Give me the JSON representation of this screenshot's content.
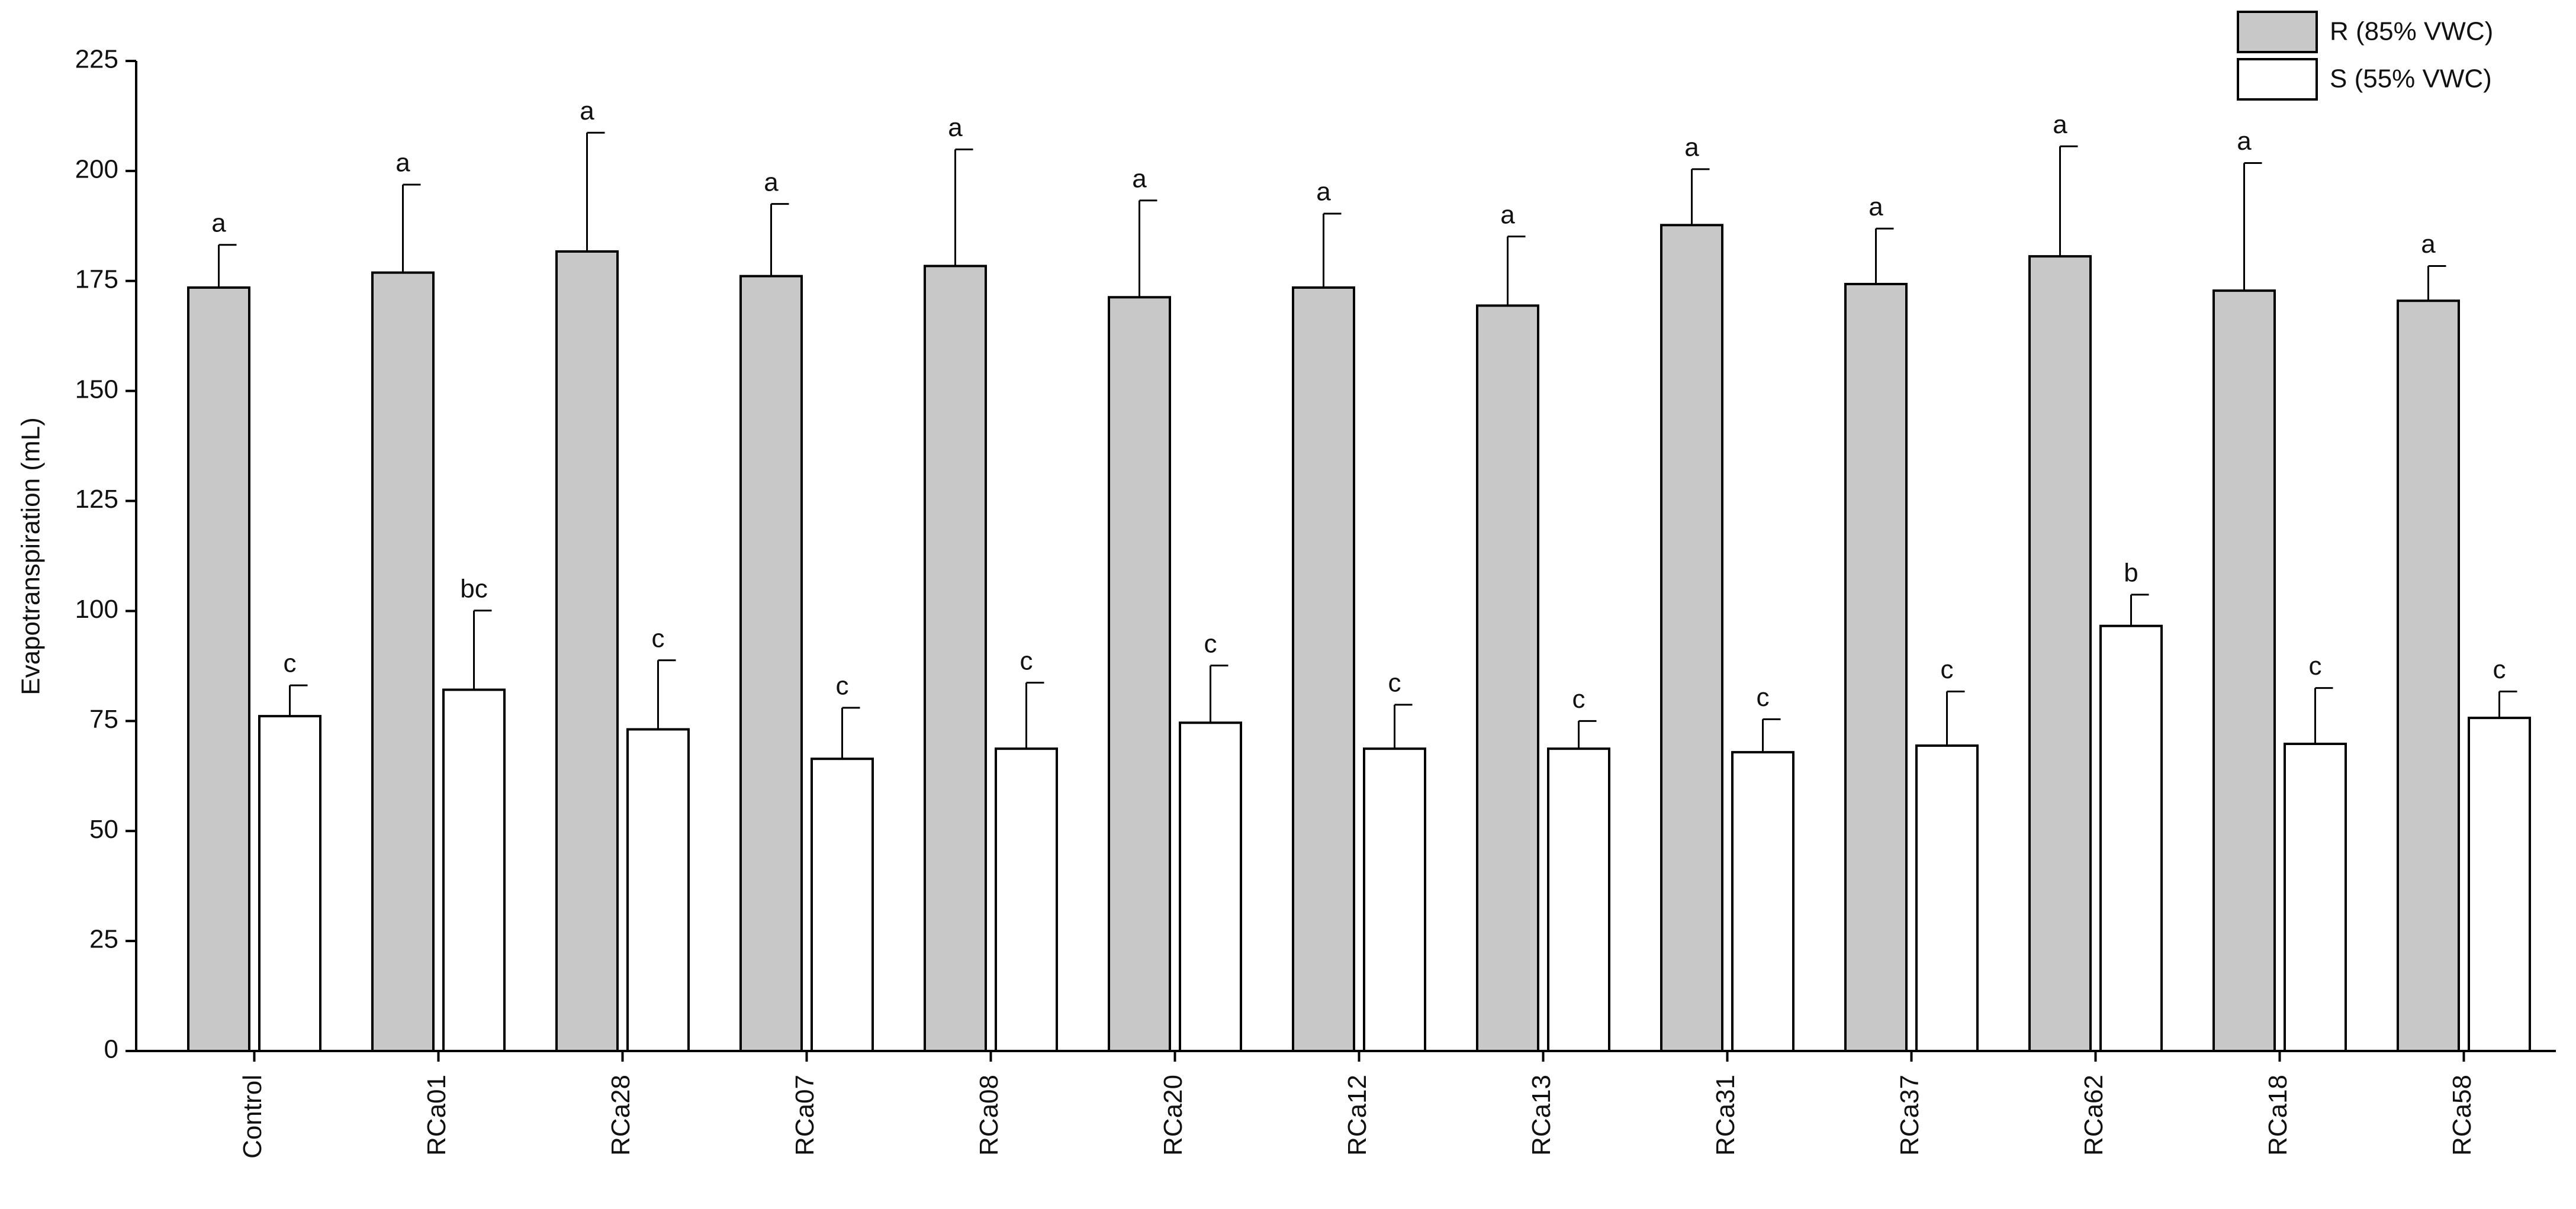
{
  "chart_data": {
    "type": "bar",
    "y_label": "Evapotranspiration (mL)",
    "categories": [
      "Control",
      "RCa01",
      "RCa28",
      "RCa07",
      "RCa08",
      "RCa20",
      "RCa12",
      "RCa13",
      "RCa31",
      "RCa37",
      "RCa62",
      "RCa18",
      "RCa58"
    ],
    "series": [
      {
        "name": "R (85% VWC)",
        "color": "#c8c8c8",
        "values": [
          173.5,
          176.9,
          181.7,
          176.1,
          178.4,
          171.3,
          173.5,
          169.4,
          187.7,
          174.3,
          180.6,
          172.8,
          170.5
        ],
        "errors": [
          9.7,
          20,
          27,
          16.4,
          26.5,
          22,
          16.8,
          15.7,
          12.7,
          12.6,
          25,
          29,
          7.9
        ],
        "letters": [
          "a",
          "a",
          "a",
          "a",
          "a",
          "a",
          "a",
          "a",
          "a",
          "a",
          "a",
          "a",
          "a"
        ]
      },
      {
        "name": "S (55% VWC)",
        "color": "#ffffff",
        "values": [
          76.1,
          82.1,
          73.1,
          66.4,
          68.7,
          74.6,
          68.7,
          68.7,
          67.9,
          69.4,
          96.6,
          69.8,
          75.7
        ],
        "errors": [
          7,
          18,
          15.7,
          11.6,
          15,
          13,
          10,
          6.3,
          7.5,
          12.3,
          7.1,
          12.7,
          6
        ],
        "letters": [
          "c",
          "bc",
          "c",
          "c",
          "c",
          "c",
          "c",
          "c",
          "c",
          "c",
          "b",
          "c",
          "c"
        ]
      }
    ],
    "ylim": [
      0,
      225
    ],
    "yticks": [
      0,
      25,
      50,
      75,
      100,
      125,
      150,
      175,
      200,
      225
    ],
    "legend": "top-right",
    "grid": false
  }
}
